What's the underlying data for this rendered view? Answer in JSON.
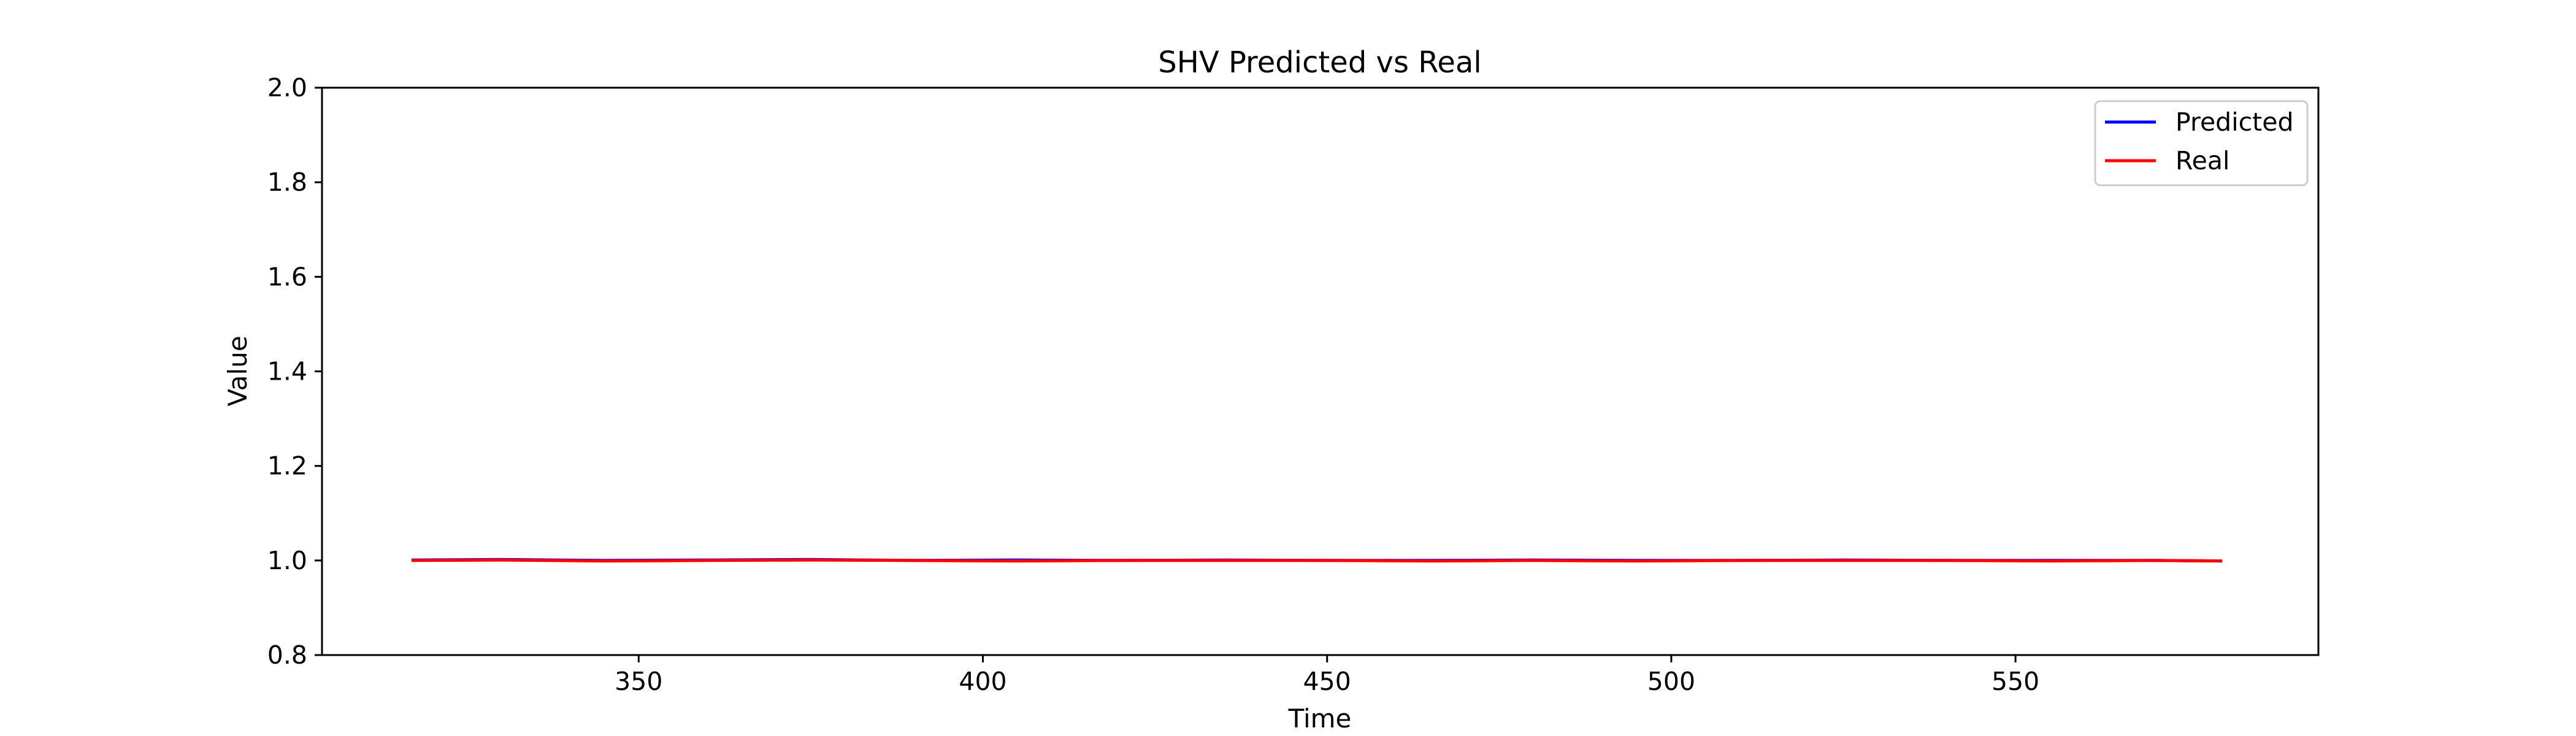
{
  "chart_data": {
    "type": "line",
    "title": "SHV Predicted vs Real",
    "xlabel": "Time",
    "ylabel": "Value",
    "xlim": [
      304,
      594
    ],
    "ylim": [
      0.8,
      2.0
    ],
    "xticks": [
      350,
      400,
      450,
      500,
      550
    ],
    "yticks": [
      0.8,
      1.0,
      1.2,
      1.4,
      1.6,
      1.8,
      2.0
    ],
    "ytick_labels": [
      "0.8",
      "1.0",
      "1.2",
      "1.4",
      "1.6",
      "1.8",
      "2.0"
    ],
    "grid": false,
    "legend_position": "upper right",
    "x_start": 317,
    "x_end": 580,
    "series": [
      {
        "name": "Predicted",
        "color": "#0000ff",
        "values_summary": "approximately 1.0 throughout"
      },
      {
        "name": "Real",
        "color": "#ff0000",
        "values_summary": "approximately 1.0 throughout"
      }
    ],
    "points": {
      "x": [
        317,
        330,
        345,
        360,
        375,
        390,
        405,
        420,
        435,
        450,
        465,
        480,
        495,
        510,
        525,
        540,
        555,
        570,
        580
      ],
      "predicted": [
        1.001,
        1.002,
        1.0,
        1.001,
        1.002,
        1.0,
        1.001,
        1.0,
        1.001,
        1.0,
        1.0,
        1.001,
        1.0,
        1.0,
        1.001,
        1.0,
        1.0,
        1.0,
        0.999
      ],
      "real": [
        1.0,
        1.001,
        0.999,
        1.0,
        1.001,
        1.0,
        0.999,
        1.0,
        1.0,
        1.0,
        0.999,
        1.0,
        0.999,
        1.0,
        1.0,
        1.0,
        0.999,
        1.0,
        0.999
      ]
    }
  }
}
